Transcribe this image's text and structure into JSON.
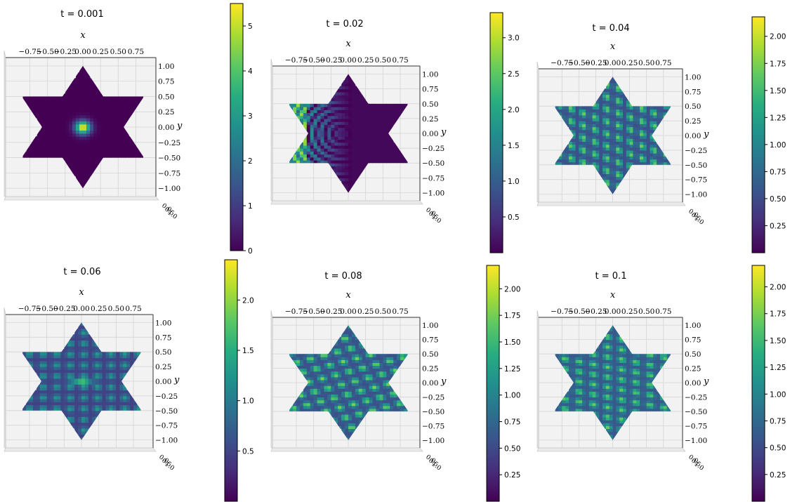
{
  "chart_data": [
    {
      "type": "surface",
      "title": "t = 0.001",
      "xlabel": "x",
      "ylabel": "y",
      "xticks": [
        "−0.75",
        "−0.50",
        "−0.25",
        "0.00",
        "0.25",
        "0.50",
        "0.75"
      ],
      "yticks": [
        "1.00",
        "0.75",
        "0.50",
        "0.25",
        "0.00",
        "−0.25",
        "−0.50",
        "−0.75",
        "−1.00"
      ],
      "zticks": [
        "0.0",
        "0.5",
        "1.0"
      ],
      "colorbar": {
        "min": 0,
        "max": 5.5,
        "ticks": [
          "0",
          "1",
          "2",
          "3",
          "4",
          "5"
        ]
      },
      "pattern": "gaussian"
    },
    {
      "type": "surface",
      "title": "t = 0.02",
      "xlabel": "x",
      "ylabel": "y",
      "xticks": [
        "−0.75",
        "−0.50",
        "−0.25",
        "0.00",
        "0.25",
        "0.50",
        "0.75"
      ],
      "yticks": [
        "1.00",
        "0.75",
        "0.50",
        "0.25",
        "0.00",
        "−0.25",
        "−0.50",
        "−0.75",
        "−1.00"
      ],
      "zticks": [
        "0.0",
        "0.5",
        "1.0"
      ],
      "colorbar": {
        "min": 0,
        "max": 3.35,
        "ticks": [
          "0.5",
          "1.0",
          "1.5",
          "2.0",
          "2.5",
          "3.0"
        ]
      },
      "pattern": "waves-left"
    },
    {
      "type": "surface",
      "title": "t = 0.04",
      "xlabel": "x",
      "ylabel": "y",
      "xticks": [
        "−0.75",
        "−0.50",
        "−0.25",
        "0.00",
        "0.25",
        "0.50",
        "0.75"
      ],
      "yticks": [
        "1.00",
        "0.75",
        "0.50",
        "0.25",
        "0.00",
        "−0.25",
        "−0.50",
        "−0.75",
        "−1.00"
      ],
      "zticks": [
        "0.0",
        "0.5",
        "1.0"
      ],
      "colorbar": {
        "min": 0,
        "max": 2.18,
        "ticks": [
          "0.25",
          "0.50",
          "0.75",
          "1.00",
          "1.25",
          "1.50",
          "1.75",
          "2.00"
        ]
      },
      "pattern": "interference"
    },
    {
      "type": "surface",
      "title": "t = 0.06",
      "xlabel": "x",
      "ylabel": "y",
      "xticks": [
        "−0.75",
        "−0.50",
        "−0.25",
        "0.00",
        "0.25",
        "0.50",
        "0.75"
      ],
      "yticks": [
        "1.00",
        "0.75",
        "0.50",
        "0.25",
        "0.00",
        "−0.25",
        "−0.50",
        "−0.75",
        "−1.00"
      ],
      "zticks": [
        "0.0",
        "0.5",
        "1.0"
      ],
      "colorbar": {
        "min": 0,
        "max": 2.4,
        "ticks": [
          "0.5",
          "1.0",
          "1.5",
          "2.0"
        ]
      },
      "pattern": "center-peak"
    },
    {
      "type": "surface",
      "title": "t = 0.08",
      "xlabel": "x",
      "ylabel": "y",
      "xticks": [
        "−0.75",
        "−0.50",
        "−0.25",
        "0.00",
        "0.25",
        "0.50",
        "0.75"
      ],
      "yticks": [
        "1.00",
        "0.75",
        "0.50",
        "0.25",
        "0.00",
        "−0.25",
        "−0.50",
        "−0.75",
        "−1.00"
      ],
      "zticks": [
        "0.0",
        "0.5",
        "1.0"
      ],
      "colorbar": {
        "min": 0,
        "max": 2.22,
        "ticks": [
          "0.25",
          "0.50",
          "0.75",
          "1.00",
          "1.25",
          "1.50",
          "1.75",
          "2.00"
        ]
      },
      "pattern": "mixed"
    },
    {
      "type": "surface",
      "title": "t = 0.1",
      "xlabel": "x",
      "ylabel": "y",
      "xticks": [
        "−0.75",
        "−0.50",
        "−0.25",
        "0.00",
        "0.25",
        "0.50",
        "0.75"
      ],
      "yticks": [
        "1.00",
        "0.75",
        "0.50",
        "0.25",
        "0.00",
        "−0.25",
        "−0.50",
        "−0.75",
        "−1.00"
      ],
      "zticks": [
        "0.0",
        "0.5",
        "1.0"
      ],
      "colorbar": {
        "min": 0,
        "max": 2.2,
        "ticks": [
          "0.25",
          "0.50",
          "0.75",
          "1.00",
          "1.25",
          "1.50",
          "1.75",
          "2.00"
        ]
      },
      "pattern": "mixed2"
    }
  ],
  "colormap": {
    "name": "viridis",
    "stops": [
      "#440154",
      "#472c7a",
      "#3b518b",
      "#2c718e",
      "#21908d",
      "#27ad81",
      "#5cc863",
      "#aadc32",
      "#fde725"
    ]
  },
  "pane_color": "#f2f2f2"
}
